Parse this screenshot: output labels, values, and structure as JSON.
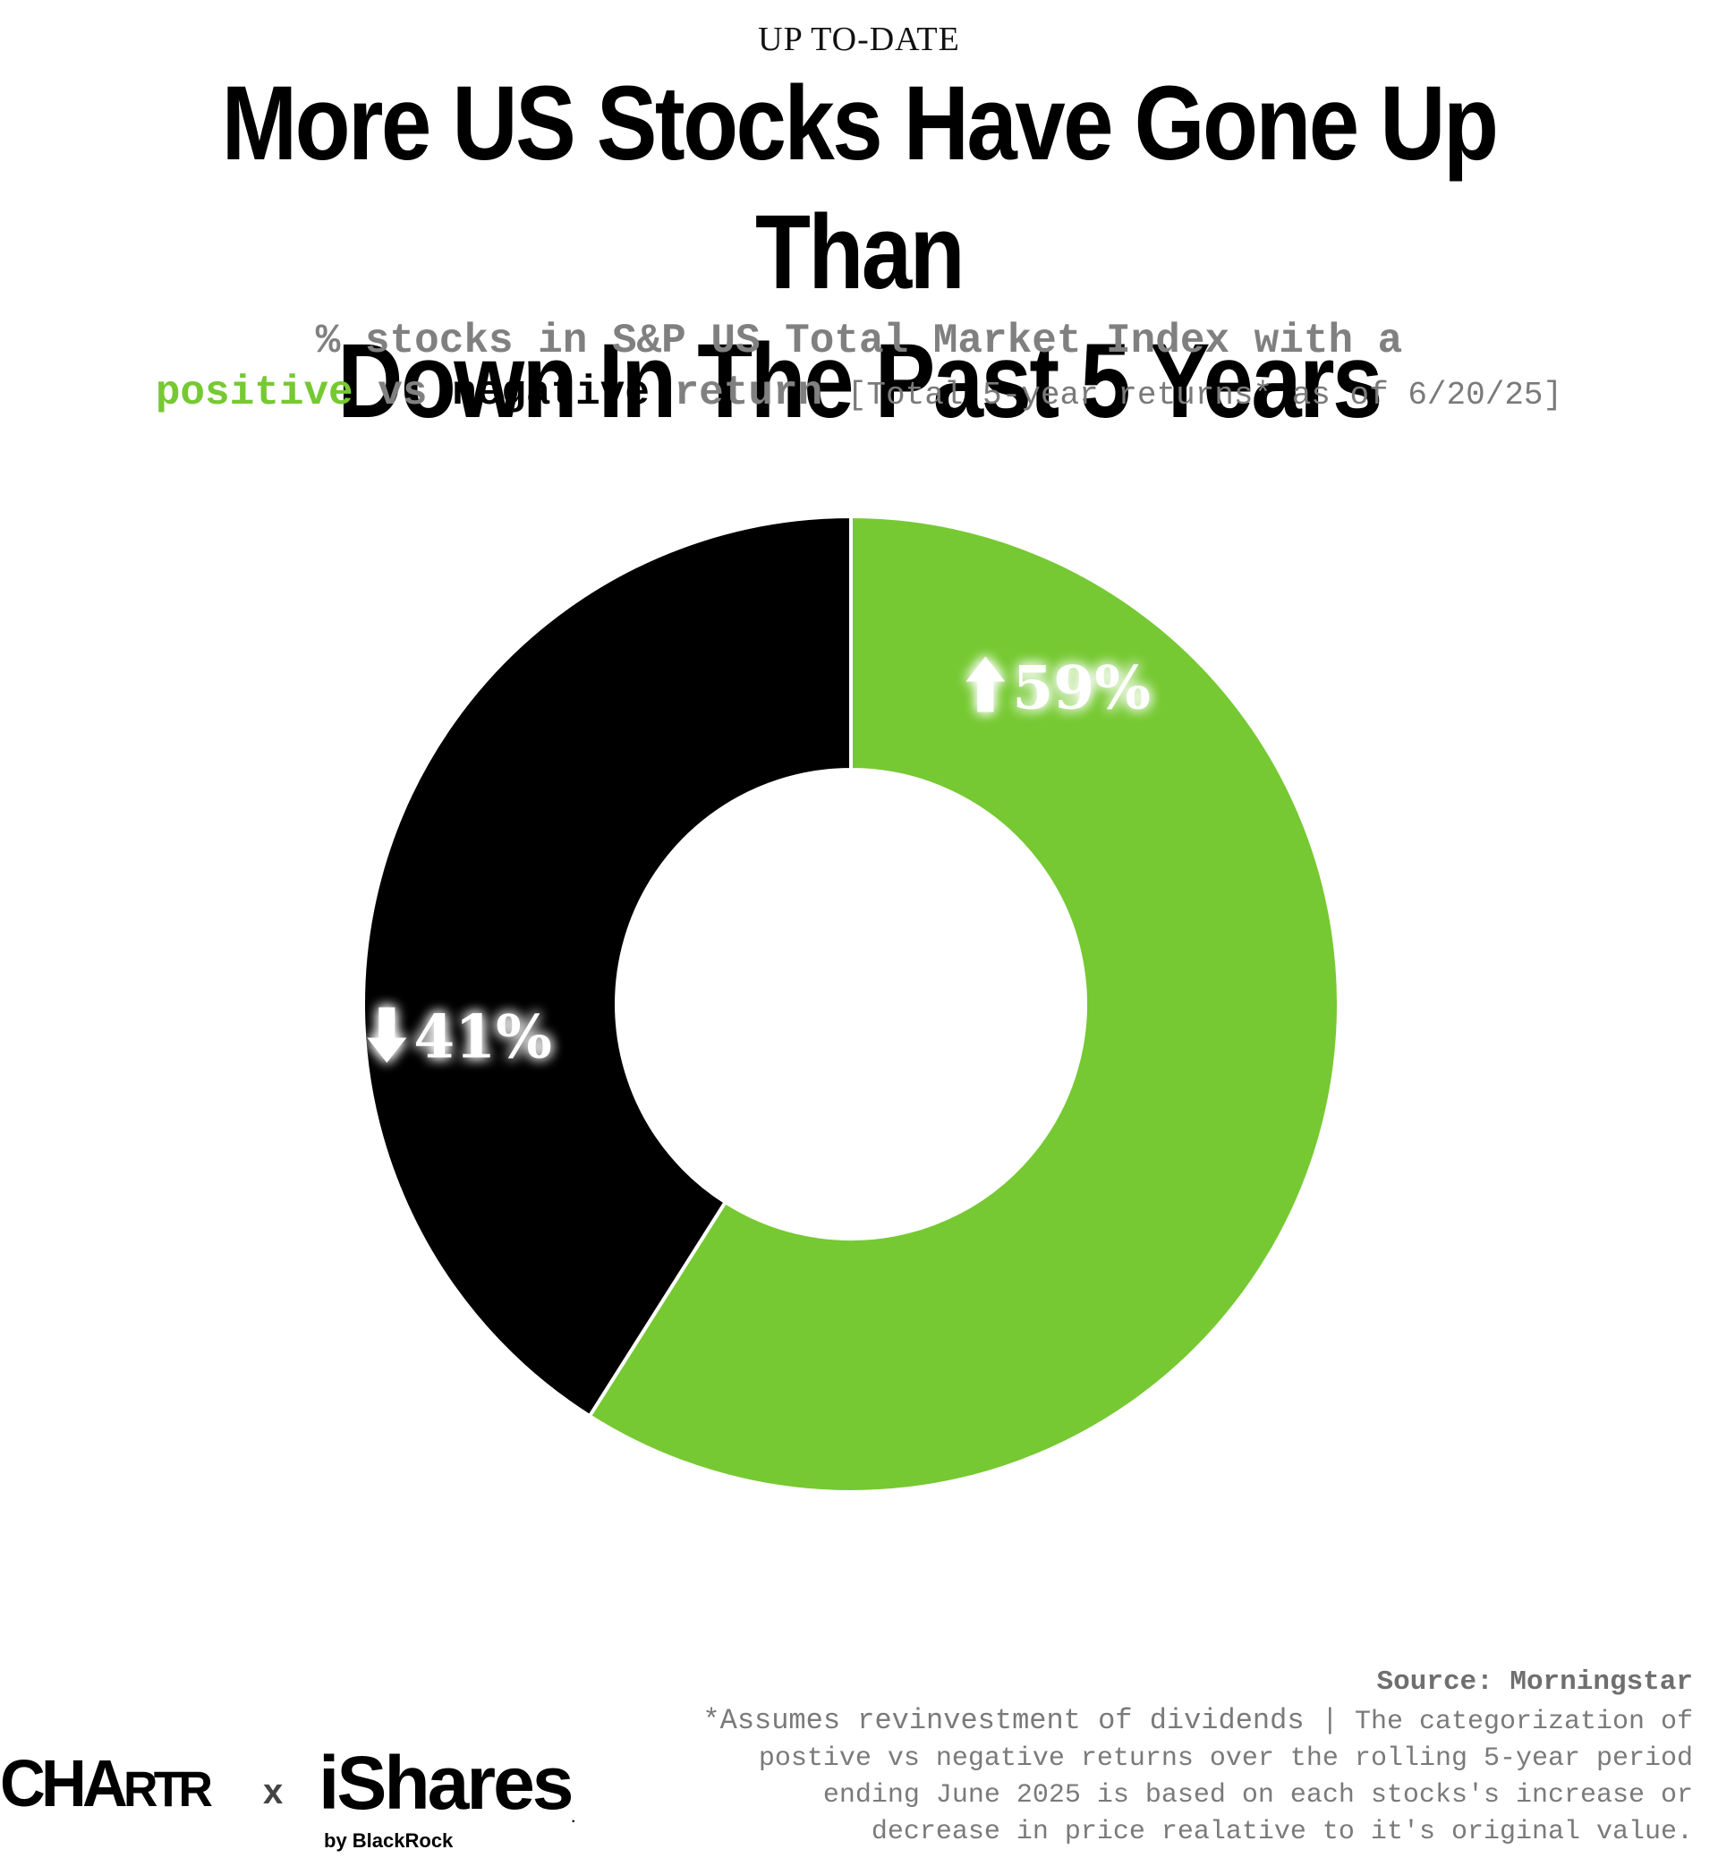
{
  "header": {
    "kicker": "UP TO-DATE",
    "title_line1": "More US Stocks Have Gone Up Than",
    "title_line2": "Down In The Past 5 Years",
    "subtitle_line1": "% stocks in S&P US Total Market Index with a",
    "subtitle_positive": "positive",
    "subtitle_vs": "vs",
    "subtitle_negative": "negative",
    "subtitle_return": "return",
    "subtitle_note": "[Total 5-year returns* as of 6/20/25]"
  },
  "chart_data": {
    "type": "pie",
    "donut": true,
    "slices": [
      {
        "label": "59%",
        "value": 59,
        "color": "#76c932",
        "icon": "up-arrow-icon"
      },
      {
        "label": "41%",
        "value": 41,
        "color": "#000000",
        "icon": "down-arrow-icon"
      }
    ]
  },
  "footer": {
    "source": "Source: Morningstar",
    "footnote_lead": "*Assumes revinvestment of dividends |",
    "footnote_line1_rest": "The categorization of",
    "footnote_line2": "postive vs negative returns over the rolling 5-year period",
    "footnote_line3": "ending June 2025 is based on each stocks's increase or",
    "footnote_line4": "decrease in price realative to it's original value.",
    "logo_chartr_big": "CHA",
    "logo_chartr_small": "RTR",
    "logo_times": "x",
    "logo_ishares": "iShares",
    "logo_ishares_mark": ".",
    "logo_byline": "by BlackRock"
  },
  "colors": {
    "positive": "#76c932",
    "negative": "#000000",
    "muted": "#808080"
  }
}
